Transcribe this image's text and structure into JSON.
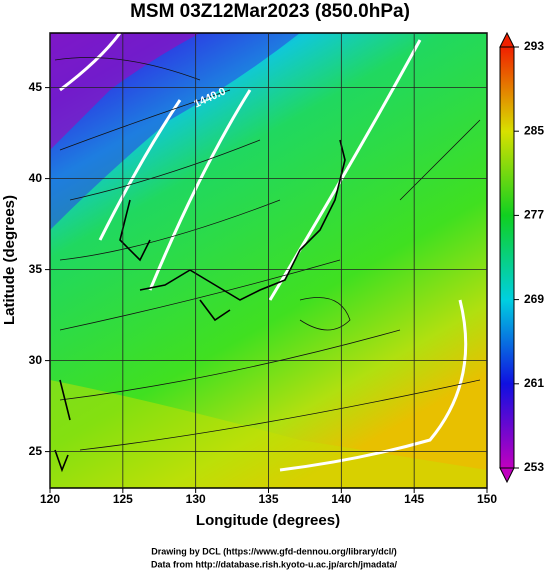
{
  "chart_data": {
    "type": "map",
    "title": "MSM 03Z12Mar2023 (850.0hPa)",
    "xlabel": "Longitude (degrees)",
    "ylabel": "Latitude  (degrees)",
    "xlim": [
      120,
      150
    ],
    "xticks": [
      120,
      125,
      130,
      135,
      140,
      145,
      150
    ],
    "ylim": [
      23,
      48
    ],
    "yticks": [
      25,
      30,
      35,
      40,
      45
    ],
    "grid": true,
    "colorbar": {
      "lim": [
        253,
        293
      ],
      "ticks": [
        253,
        261,
        269,
        277,
        285,
        293
      ]
    },
    "contour_labels": [
      "1440.0"
    ],
    "credits": [
      "Drawing by DCL (https://www.gfd-dennou.org/library/dcl/)",
      "Data from http://database.rish.kyoto-u.ac.jp/arch/jmadata/"
    ]
  }
}
